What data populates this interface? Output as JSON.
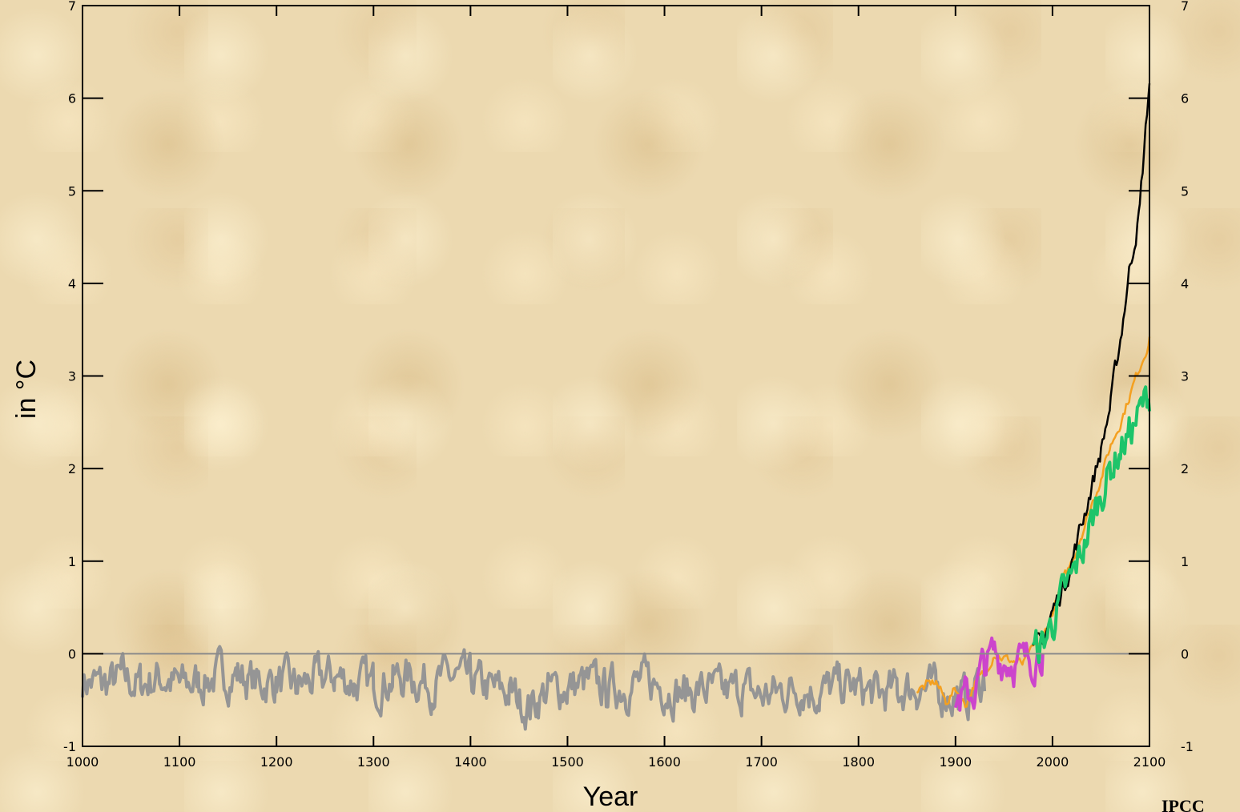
{
  "chart_data": {
    "type": "line",
    "title": "",
    "xlabel": "Year",
    "ylabel": "in °C",
    "credit": "IPCC",
    "xlim": [
      1000,
      2100
    ],
    "ylim": [
      -1,
      7
    ],
    "x_ticks": [
      1000,
      1100,
      1200,
      1300,
      1400,
      1500,
      1600,
      1700,
      1800,
      1900,
      2000,
      2100
    ],
    "y_ticks": [
      -1,
      0,
      1,
      2,
      3,
      4,
      5,
      6,
      7
    ],
    "y_ticks_right": [
      -1,
      0,
      1,
      2,
      3,
      4,
      5,
      6,
      7
    ],
    "baseline": 0,
    "grid": false,
    "series": [
      {
        "color": "#959595",
        "band": 0.24,
        "points": [
          [
            1000,
            -0.28
          ],
          [
            1020,
            -0.34
          ],
          [
            1040,
            -0.27
          ],
          [
            1060,
            -0.33
          ],
          [
            1080,
            -0.25
          ],
          [
            1100,
            -0.35
          ],
          [
            1120,
            -0.3
          ],
          [
            1140,
            -0.24
          ],
          [
            1160,
            -0.22
          ],
          [
            1180,
            -0.32
          ],
          [
            1200,
            -0.29
          ],
          [
            1220,
            -0.36
          ],
          [
            1240,
            -0.28
          ],
          [
            1260,
            -0.24
          ],
          [
            1280,
            -0.31
          ],
          [
            1300,
            -0.33
          ],
          [
            1320,
            -0.27
          ],
          [
            1340,
            -0.25
          ],
          [
            1360,
            -0.33
          ],
          [
            1380,
            -0.26
          ],
          [
            1400,
            -0.3
          ],
          [
            1420,
            -0.38
          ],
          [
            1440,
            -0.42
          ],
          [
            1460,
            -0.57
          ],
          [
            1470,
            -0.48
          ],
          [
            1480,
            -0.4
          ],
          [
            1500,
            -0.36
          ],
          [
            1520,
            -0.32
          ],
          [
            1540,
            -0.38
          ],
          [
            1560,
            -0.34
          ],
          [
            1580,
            -0.3
          ],
          [
            1600,
            -0.36
          ],
          [
            1620,
            -0.42
          ],
          [
            1640,
            -0.38
          ],
          [
            1660,
            -0.43
          ],
          [
            1680,
            -0.38
          ],
          [
            1700,
            -0.46
          ],
          [
            1720,
            -0.4
          ],
          [
            1740,
            -0.36
          ],
          [
            1760,
            -0.42
          ],
          [
            1780,
            -0.34
          ],
          [
            1800,
            -0.38
          ],
          [
            1820,
            -0.44
          ],
          [
            1840,
            -0.4
          ],
          [
            1860,
            -0.36
          ],
          [
            1880,
            -0.4
          ],
          [
            1900,
            -0.45
          ],
          [
            1910,
            -0.5
          ],
          [
            1920,
            -0.38
          ],
          [
            1930,
            -0.28
          ]
        ]
      },
      {
        "color": "#f4a020",
        "band": 0.06,
        "points": [
          [
            1860,
            -0.4
          ],
          [
            1870,
            -0.35
          ],
          [
            1880,
            -0.3
          ],
          [
            1890,
            -0.52
          ],
          [
            1900,
            -0.38
          ],
          [
            1910,
            -0.55
          ],
          [
            1920,
            -0.32
          ],
          [
            1930,
            -0.22
          ],
          [
            1940,
            0.02
          ],
          [
            1950,
            -0.05
          ],
          [
            1960,
            -0.08
          ],
          [
            1970,
            -0.12
          ],
          [
            1980,
            0.05
          ],
          [
            1990,
            0.15
          ],
          [
            2000,
            0.45
          ],
          [
            2010,
            0.75
          ],
          [
            2020,
            1.0
          ],
          [
            2030,
            1.3
          ],
          [
            2040,
            1.6
          ],
          [
            2050,
            1.9
          ],
          [
            2060,
            2.25
          ],
          [
            2070,
            2.5
          ],
          [
            2080,
            2.8
          ],
          [
            2090,
            3.1
          ],
          [
            2100,
            3.4
          ]
        ]
      },
      {
        "color": "#cc44cc",
        "band": 0.24,
        "points": [
          [
            1900,
            -0.45
          ],
          [
            1910,
            -0.5
          ],
          [
            1920,
            -0.38
          ],
          [
            1930,
            -0.12
          ],
          [
            1940,
            -0.02
          ],
          [
            1950,
            -0.06
          ],
          [
            1960,
            -0.06
          ],
          [
            1970,
            -0.12
          ],
          [
            1980,
            -0.02
          ],
          [
            1990,
            0.1
          ]
        ]
      },
      {
        "color": "#000000",
        "band": 0.12,
        "points": [
          [
            1980,
            0.0
          ],
          [
            1990,
            0.15
          ],
          [
            2000,
            0.45
          ],
          [
            2010,
            0.7
          ],
          [
            2020,
            1.0
          ],
          [
            2030,
            1.4
          ],
          [
            2040,
            1.8
          ],
          [
            2050,
            2.2
          ],
          [
            2060,
            2.7
          ],
          [
            2070,
            3.4
          ],
          [
            2080,
            4.2
          ],
          [
            2090,
            4.8
          ],
          [
            2100,
            6.2
          ]
        ]
      },
      {
        "color": "#1ec46a",
        "band": 0.22,
        "points": [
          [
            1980,
            0.0
          ],
          [
            1990,
            0.1
          ],
          [
            2000,
            0.35
          ],
          [
            2010,
            0.6
          ],
          [
            2020,
            0.8
          ],
          [
            2030,
            1.1
          ],
          [
            2040,
            1.4
          ],
          [
            2050,
            1.75
          ],
          [
            2060,
            2.0
          ],
          [
            2070,
            2.2
          ],
          [
            2080,
            2.4
          ],
          [
            2090,
            2.6
          ],
          [
            2100,
            2.8
          ]
        ]
      }
    ]
  }
}
